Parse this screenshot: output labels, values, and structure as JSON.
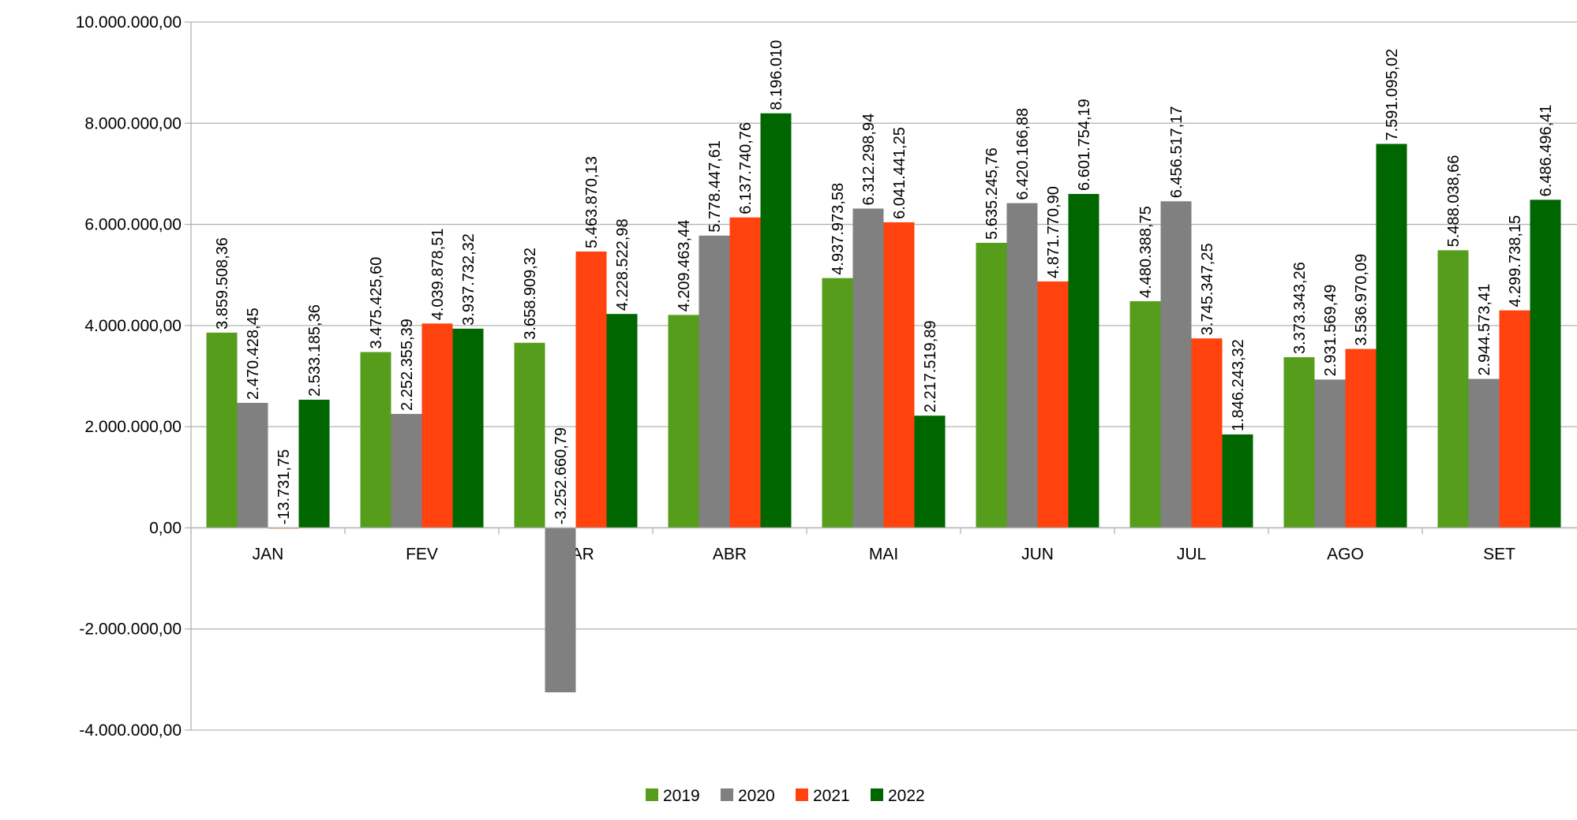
{
  "chart_data": {
    "type": "bar",
    "categories": [
      "JAN",
      "FEV",
      "MAR",
      "ABR",
      "MAI",
      "JUN",
      "JUL",
      "AGO",
      "SET"
    ],
    "series": [
      {
        "name": "2019",
        "color": "#579d1c",
        "values": [
          3859508.36,
          3475425.6,
          3658909.32,
          4209463.44,
          4937973.58,
          5635245.76,
          4480388.75,
          3373343.26,
          5488038.66
        ],
        "value_labels": [
          "3.859.508,36",
          "3.475.425,60",
          "3.658.909,32",
          "4.209.463,44",
          "4.937.973,58",
          "5.635.245,76",
          "4.480.388,75",
          "3.373.343,26",
          "5.488.038,66"
        ]
      },
      {
        "name": "2020",
        "color": "#808080",
        "values": [
          2470428.45,
          2252355.39,
          -3252660.79,
          5778447.61,
          6312298.94,
          6420166.88,
          6456517.17,
          2931569.49,
          2944573.41
        ],
        "value_labels": [
          "2.470.428,45",
          "2.252.355,39",
          "-3.252.660,79",
          "5.778.447,61",
          "6.312.298,94",
          "6.420.166,88",
          "6.456.517,17",
          "2.931.569,49",
          "2.944.573,41"
        ]
      },
      {
        "name": "2021",
        "color": "#ff420e",
        "values": [
          -13731.75,
          4039878.51,
          5463870.13,
          6137740.76,
          6041441.25,
          4871770.9,
          3745347.25,
          3536970.09,
          4299738.15
        ],
        "value_labels": [
          "-13.731,75",
          "4.039.878,51",
          "5.463.870,13",
          "6.137.740,76",
          "6.041.441,25",
          "4.871.770,90",
          "3.745.347,25",
          "3.536.970,09",
          "4.299.738,15"
        ]
      },
      {
        "name": "2022",
        "color": "#006600",
        "values": [
          2533185.36,
          3937732.32,
          4228522.98,
          8196010,
          2217519.89,
          6601754.19,
          1846243.32,
          7591095.02,
          6486496.41
        ],
        "value_labels": [
          "2.533.185,36",
          "3.937.732,32",
          "4.228.522,98",
          "8.196.010",
          "2.217.519,89",
          "6.601.754,19",
          "1.846.243,32",
          "7.591.095,02",
          "6.486.496,41"
        ]
      }
    ],
    "ylim": [
      -4000000,
      10000000
    ],
    "yticks": [
      {
        "value": -4000000,
        "label": "-4.000.000,00"
      },
      {
        "value": -2000000,
        "label": "-2.000.000,00"
      },
      {
        "value": 0,
        "label": "0,00"
      },
      {
        "value": 2000000,
        "label": "2.000.000,00"
      },
      {
        "value": 4000000,
        "label": "4.000.000,00"
      },
      {
        "value": 6000000,
        "label": "6.000.000,00"
      },
      {
        "value": 8000000,
        "label": "8.000.000,00"
      },
      {
        "value": 10000000,
        "label": "10.000.000,00"
      }
    ],
    "grid": true,
    "legend": "bottom"
  }
}
